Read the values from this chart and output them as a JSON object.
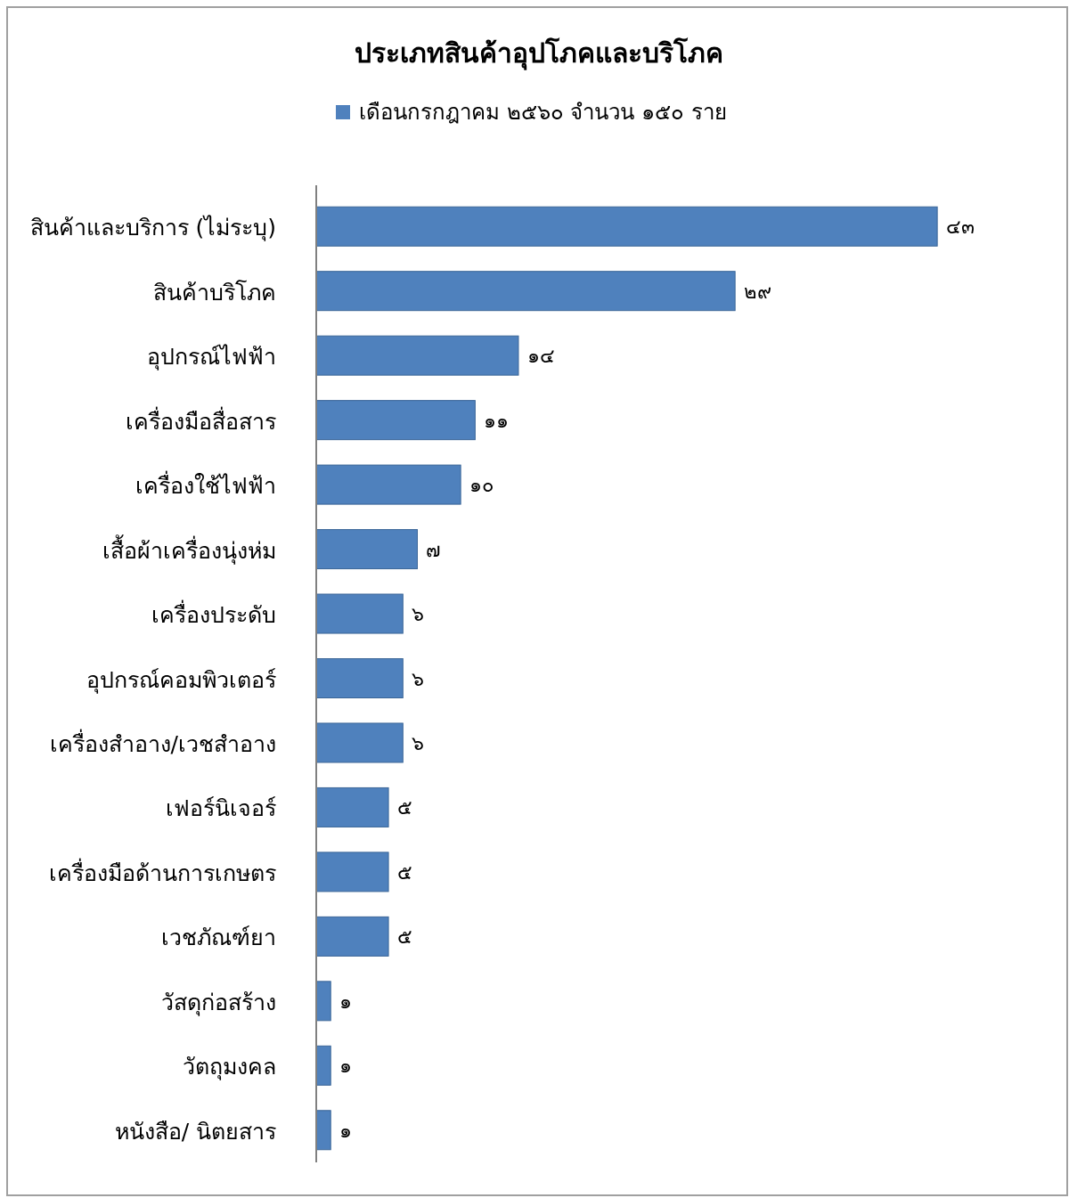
{
  "chart_data": {
    "type": "bar",
    "orientation": "horizontal",
    "title": "ประเภทสินค้าอุปโภคและบริโภค",
    "legend": "top",
    "categories": [
      "สินค้าและบริการ (ไม่ระบุ)",
      "สินค้าบริโภค",
      "อุปกรณ์ไฟฟ้า",
      "เครื่องมือสื่อสาร",
      "เครื่องใช้ไฟฟ้า",
      "เสื้อผ้าเครื่องนุ่งห่ม",
      "เครื่องประดับ",
      "อุปกรณ์คอมพิวเตอร์",
      "เครื่องสำอาง/เวชสำอาง",
      "เฟอร์นิเจอร์",
      "เครื่องมือด้านการเกษตร",
      "เวชภัณฑ์ยา",
      "วัสดุก่อสร้าง",
      "วัตถุมงคล",
      "หนังสือ/ นิตยสาร"
    ],
    "series": [
      {
        "name": "เดือนกรกฎาคม ๒๕๖๐ จำนวน ๑๕๐ ราย",
        "color": "#4f81bd",
        "values": [
          43,
          29,
          14,
          11,
          10,
          7,
          6,
          6,
          6,
          5,
          5,
          5,
          1,
          1,
          1
        ],
        "value_labels": [
          "๔๓",
          "๒๙",
          "๑๔",
          "๑๑",
          "๑๐",
          "๗",
          "๖",
          "๖",
          "๖",
          "๕",
          "๕",
          "๕",
          "๑",
          "๑",
          "๑"
        ]
      }
    ]
  }
}
